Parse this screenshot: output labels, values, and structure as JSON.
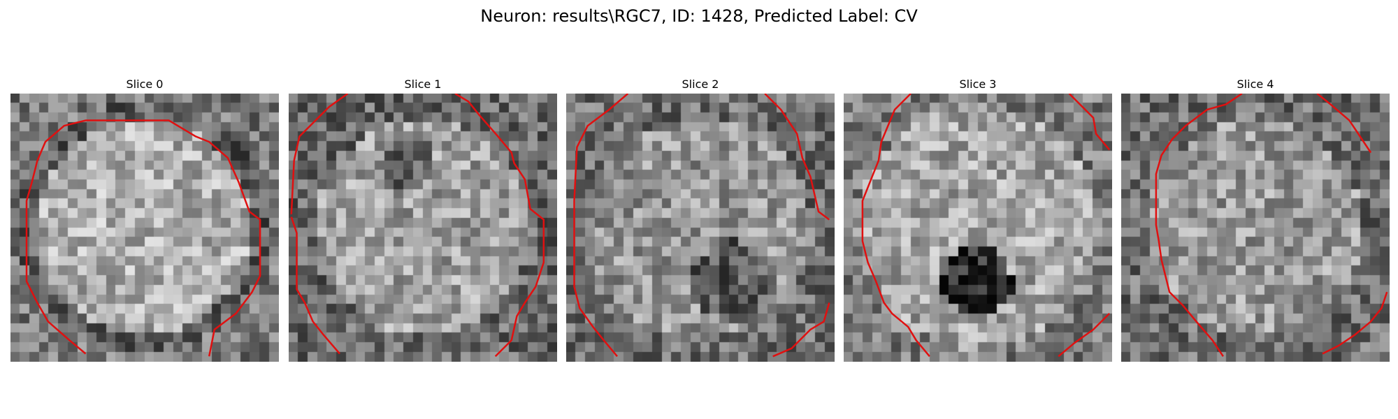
{
  "figure": {
    "title": "Neuron: results\\RGC7, ID: 1428, Predicted Label: CV"
  },
  "panels": [
    {
      "title": "Slice 0",
      "seed": 11,
      "pattern": "ring",
      "contours": [
        [
          [
            0.28,
            0.97
          ],
          [
            0.22,
            0.92
          ],
          [
            0.14,
            0.85
          ],
          [
            0.1,
            0.78
          ],
          [
            0.06,
            0.7
          ],
          [
            0.06,
            0.4
          ],
          [
            0.08,
            0.33
          ],
          [
            0.1,
            0.25
          ],
          [
            0.13,
            0.18
          ],
          [
            0.2,
            0.12
          ],
          [
            0.28,
            0.1
          ],
          [
            0.59,
            0.1
          ],
          [
            0.64,
            0.13
          ],
          [
            0.69,
            0.16
          ],
          [
            0.74,
            0.18
          ],
          [
            0.81,
            0.24
          ],
          [
            0.85,
            0.33
          ],
          [
            0.89,
            0.44
          ],
          [
            0.93,
            0.47
          ],
          [
            0.93,
            0.68
          ],
          [
            0.9,
            0.74
          ],
          [
            0.84,
            0.82
          ],
          [
            0.76,
            0.88
          ],
          [
            0.74,
            0.98
          ]
        ]
      ]
    },
    {
      "title": "Slice 1",
      "seed": 23,
      "pattern": "bright",
      "contours": [
        [
          [
            0.22,
            0.0
          ],
          [
            0.15,
            0.05
          ],
          [
            0.08,
            0.12
          ],
          [
            0.04,
            0.16
          ],
          [
            0.02,
            0.25
          ],
          [
            0.01,
            0.45
          ]
        ],
        [
          [
            0.01,
            0.46
          ],
          [
            0.03,
            0.52
          ],
          [
            0.03,
            0.73
          ],
          [
            0.06,
            0.78
          ],
          [
            0.09,
            0.85
          ],
          [
            0.13,
            0.9
          ],
          [
            0.19,
            0.97
          ]
        ],
        [
          [
            0.62,
            0.0
          ],
          [
            0.67,
            0.03
          ],
          [
            0.71,
            0.08
          ],
          [
            0.78,
            0.16
          ],
          [
            0.83,
            0.22
          ],
          [
            0.84,
            0.26
          ],
          [
            0.88,
            0.32
          ],
          [
            0.9,
            0.43
          ],
          [
            0.95,
            0.47
          ],
          [
            0.95,
            0.63
          ],
          [
            0.92,
            0.72
          ],
          [
            0.88,
            0.78
          ],
          [
            0.85,
            0.83
          ],
          [
            0.83,
            0.92
          ],
          [
            0.77,
            0.98
          ]
        ]
      ]
    },
    {
      "title": "Slice 2",
      "seed": 37,
      "pattern": "mixed",
      "contours": [
        [
          [
            0.23,
            0.0
          ],
          [
            0.16,
            0.06
          ],
          [
            0.08,
            0.12
          ],
          [
            0.04,
            0.2
          ],
          [
            0.03,
            0.4
          ],
          [
            0.03,
            0.72
          ],
          [
            0.05,
            0.8
          ],
          [
            0.1,
            0.87
          ],
          [
            0.14,
            0.92
          ],
          [
            0.19,
            0.98
          ]
        ],
        [
          [
            0.74,
            0.0
          ],
          [
            0.8,
            0.06
          ],
          [
            0.86,
            0.15
          ],
          [
            0.88,
            0.24
          ],
          [
            0.91,
            0.31
          ],
          [
            0.94,
            0.44
          ],
          [
            0.98,
            0.47
          ]
        ],
        [
          [
            0.98,
            0.78
          ],
          [
            0.96,
            0.85
          ],
          [
            0.91,
            0.88
          ],
          [
            0.84,
            0.95
          ],
          [
            0.77,
            0.98
          ]
        ]
      ]
    },
    {
      "title": "Slice 3",
      "seed": 53,
      "pattern": "dark-center",
      "contours": [
        [
          [
            0.25,
            0.0
          ],
          [
            0.19,
            0.06
          ],
          [
            0.14,
            0.18
          ],
          [
            0.13,
            0.25
          ],
          [
            0.11,
            0.3
          ],
          [
            0.07,
            0.4
          ],
          [
            0.07,
            0.55
          ],
          [
            0.09,
            0.63
          ],
          [
            0.12,
            0.7
          ],
          [
            0.15,
            0.78
          ],
          [
            0.18,
            0.82
          ],
          [
            0.24,
            0.87
          ],
          [
            0.27,
            0.92
          ],
          [
            0.32,
            0.98
          ]
        ],
        [
          [
            0.84,
            0.0
          ],
          [
            0.88,
            0.04
          ],
          [
            0.93,
            0.09
          ],
          [
            0.94,
            0.15
          ],
          [
            0.99,
            0.21
          ]
        ],
        [
          [
            0.99,
            0.82
          ],
          [
            0.93,
            0.88
          ],
          [
            0.86,
            0.93
          ],
          [
            0.8,
            0.98
          ]
        ]
      ]
    },
    {
      "title": "Slice 4",
      "seed": 71,
      "pattern": "speckle",
      "contours": [
        [
          [
            0.45,
            0.0
          ],
          [
            0.39,
            0.04
          ],
          [
            0.32,
            0.06
          ],
          [
            0.24,
            0.12
          ],
          [
            0.19,
            0.17
          ],
          [
            0.15,
            0.23
          ],
          [
            0.13,
            0.3
          ],
          [
            0.13,
            0.49
          ],
          [
            0.14,
            0.55
          ],
          [
            0.15,
            0.62
          ],
          [
            0.18,
            0.74
          ],
          [
            0.23,
            0.79
          ],
          [
            0.28,
            0.85
          ],
          [
            0.34,
            0.92
          ],
          [
            0.38,
            0.98
          ]
        ],
        [
          [
            0.73,
            0.0
          ],
          [
            0.78,
            0.04
          ],
          [
            0.85,
            0.1
          ],
          [
            0.93,
            0.22
          ]
        ],
        [
          [
            0.99,
            0.74
          ],
          [
            0.97,
            0.8
          ],
          [
            0.93,
            0.85
          ],
          [
            0.87,
            0.9
          ],
          [
            0.81,
            0.94
          ],
          [
            0.75,
            0.97
          ]
        ]
      ]
    }
  ]
}
